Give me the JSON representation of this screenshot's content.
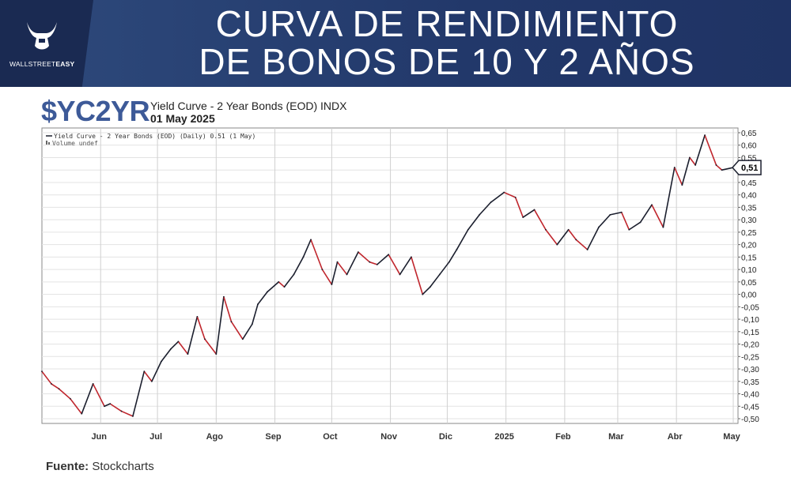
{
  "header": {
    "logo_text_light": "WALLSTREET",
    "logo_text_bold": "EASY",
    "title_line1": "CURVA DE RENDIMIENTO",
    "title_line2": "DE BONOS DE 10 Y 2 AÑOS"
  },
  "ticker": "$YC2YR",
  "subtitle": "Yield Curve - 2 Year Bonds (EOD) INDX",
  "date": "01 May 2025",
  "source_label": "Fuente:",
  "source_value": "Stockcharts",
  "colors": {
    "up": "#1b1f2e",
    "down": "#c0262d",
    "banner": "#22386a",
    "ticker": "#3d5a98"
  },
  "chart_data": {
    "type": "line",
    "legend": [
      "Yield Curve - 2 Year Bonds (EOD) (Daily) 0.51 (1 May)",
      "Volume undef"
    ],
    "last_value_label": "0,51",
    "ylim": [
      -0.5,
      0.65
    ],
    "y_ticks": [
      "0,65",
      "0,60",
      "0,55",
      "0,50",
      "0,45",
      "0,40",
      "0,35",
      "0,30",
      "0,25",
      "0,20",
      "0,15",
      "0,10",
      "0,05",
      "0,00",
      "-0,05",
      "-0,10",
      "-0,15",
      "-0,20",
      "-0,25",
      "-0,30",
      "-0,35",
      "-0,40",
      "-0,45",
      "-0,50"
    ],
    "x_ticks": [
      "Jun",
      "Jul",
      "Ago",
      "Sep",
      "Oct",
      "Nov",
      "Dic",
      "2025",
      "Feb",
      "Mar",
      "Abr",
      "May"
    ],
    "grid": true,
    "series": [
      {
        "x": [
          "2024-05-01",
          "2024-05-06",
          "2024-05-10",
          "2024-05-16",
          "2024-05-22",
          "2024-05-28",
          "2024-06-03",
          "2024-06-06",
          "2024-06-12",
          "2024-06-18",
          "2024-06-24",
          "2024-06-28",
          "2024-07-03",
          "2024-07-08",
          "2024-07-12",
          "2024-07-17",
          "2024-07-22",
          "2024-07-26",
          "2024-08-01",
          "2024-08-05",
          "2024-08-09",
          "2024-08-15",
          "2024-08-20",
          "2024-08-23",
          "2024-08-28",
          "2024-09-03",
          "2024-09-06",
          "2024-09-11",
          "2024-09-16",
          "2024-09-20",
          "2024-09-26",
          "2024-10-01",
          "2024-10-04",
          "2024-10-09",
          "2024-10-15",
          "2024-10-21",
          "2024-10-25",
          "2024-10-31",
          "2024-11-06",
          "2024-11-12",
          "2024-11-18",
          "2024-11-22",
          "2024-11-27",
          "2024-12-02",
          "2024-12-06",
          "2024-12-12",
          "2024-12-18",
          "2024-12-24",
          "2024-12-31",
          "2025-01-06",
          "2025-01-10",
          "2025-01-16",
          "2025-01-22",
          "2025-01-28",
          "2025-02-03",
          "2025-02-07",
          "2025-02-13",
          "2025-02-19",
          "2025-02-25",
          "2025-03-03",
          "2025-03-07",
          "2025-03-13",
          "2025-03-19",
          "2025-03-25",
          "2025-03-31",
          "2025-04-04",
          "2025-04-08",
          "2025-04-11",
          "2025-04-16",
          "2025-04-22",
          "2025-04-25",
          "2025-05-01"
        ],
        "y": [
          -0.31,
          -0.36,
          -0.38,
          -0.42,
          -0.48,
          -0.36,
          -0.45,
          -0.44,
          -0.47,
          -0.49,
          -0.31,
          -0.35,
          -0.27,
          -0.22,
          -0.19,
          -0.24,
          -0.09,
          -0.18,
          -0.24,
          -0.01,
          -0.11,
          -0.18,
          -0.12,
          -0.04,
          0.01,
          0.05,
          0.03,
          0.08,
          0.15,
          0.22,
          0.1,
          0.04,
          0.13,
          0.08,
          0.17,
          0.13,
          0.12,
          0.16,
          0.08,
          0.15,
          0.0,
          0.03,
          0.08,
          0.13,
          0.18,
          0.26,
          0.32,
          0.37,
          0.41,
          0.39,
          0.31,
          0.34,
          0.26,
          0.2,
          0.26,
          0.22,
          0.18,
          0.27,
          0.32,
          0.33,
          0.26,
          0.29,
          0.36,
          0.27,
          0.51,
          0.44,
          0.55,
          0.52,
          0.64,
          0.52,
          0.5,
          0.51
        ]
      }
    ]
  }
}
